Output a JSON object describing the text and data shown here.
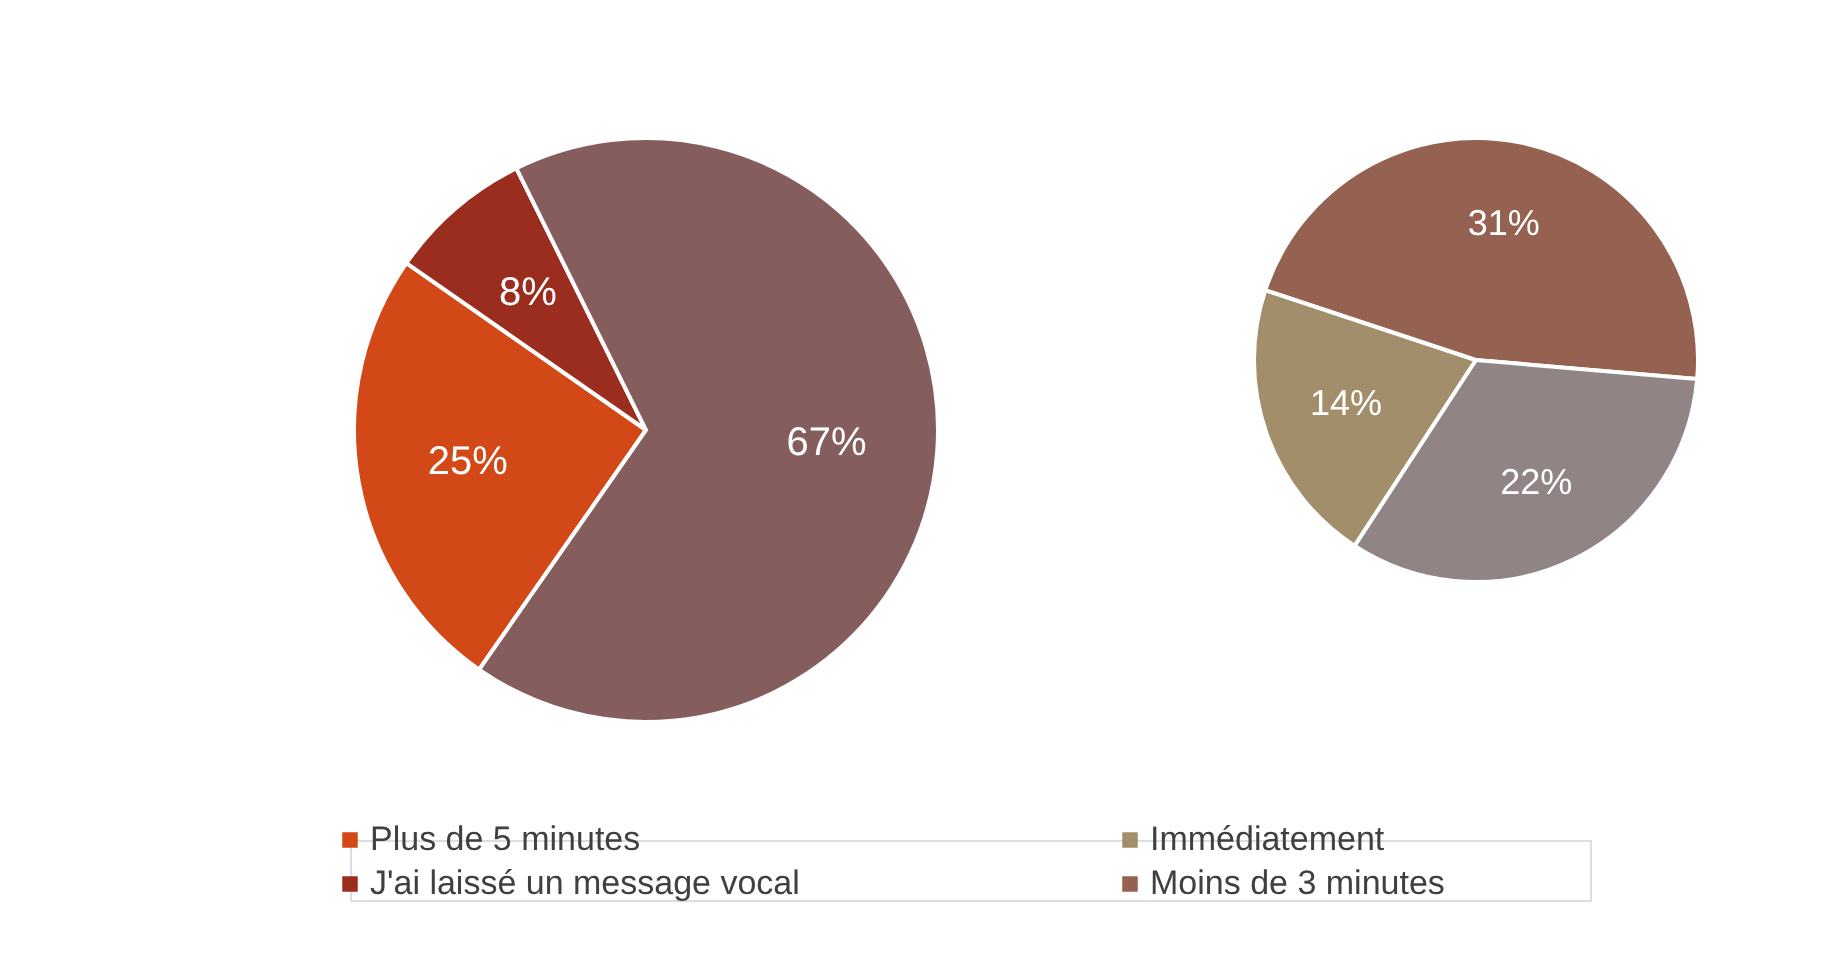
{
  "chart_data": [
    {
      "type": "pie",
      "categories": [
        "Plus de 5 minutes",
        "J'ai laissé un message vocal",
        null
      ],
      "values": [
        25,
        8,
        67
      ],
      "colors": [
        "#d34817",
        "#9b2d1f",
        "#855d5d"
      ],
      "value_labels": [
        "25%",
        "8%",
        "67%"
      ],
      "legend": "bottom"
    },
    {
      "type": "pie",
      "categories": [
        "Immédiatement",
        "Moins de 3 minutes",
        null
      ],
      "values": [
        14,
        31,
        22
      ],
      "colors": [
        "#a28e6a",
        "#956251",
        "#918485"
      ],
      "value_labels": [
        "14%",
        "31%",
        "22%"
      ],
      "legend": "bottom"
    }
  ]
}
